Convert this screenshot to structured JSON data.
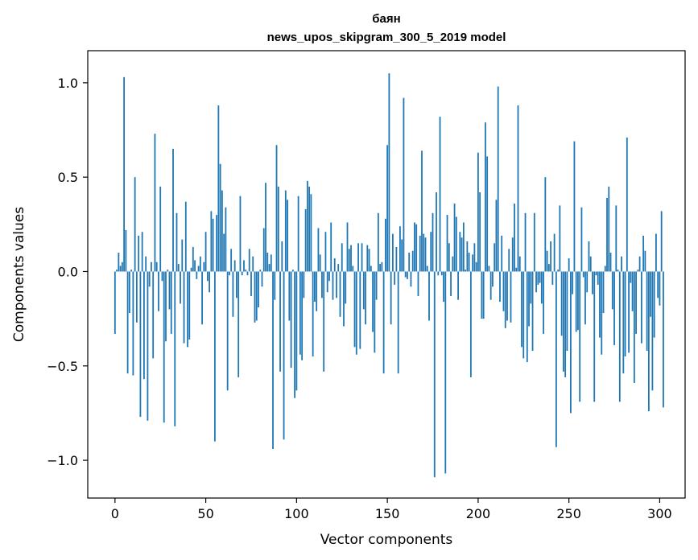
{
  "chart_data": {
    "type": "bar",
    "title_lines": [
      "баян",
      "news_upos_skipgram_300_5_2019 model"
    ],
    "xlabel": "Vector components",
    "ylabel": "Components values",
    "xlim": [
      -15,
      314
    ],
    "ylim": [
      -1.2,
      1.17
    ],
    "xticks": [
      0,
      50,
      100,
      150,
      200,
      250,
      300
    ],
    "yticks": [
      -1.0,
      -0.5,
      0.0,
      0.5,
      1.0
    ],
    "ytick_labels": [
      "−1.0",
      "−0.5",
      "0.0",
      "0.5",
      "1.0"
    ],
    "grid": false,
    "legend": "none",
    "bar_color": "#1f77b4",
    "series": [
      {
        "values": [
          -0.33,
          0.01,
          0.1,
          0.03,
          0.05,
          1.03,
          0.22,
          -0.54,
          -0.22,
          0.01,
          -0.55,
          0.5,
          -0.27,
          0.19,
          -0.77,
          0.21,
          -0.57,
          0.08,
          -0.79,
          -0.08,
          0.05,
          -0.46,
          0.73,
          0.05,
          -0.21,
          0.45,
          -0.05,
          -0.8,
          -0.37,
          0.01,
          -0.2,
          -0.33,
          0.65,
          -0.82,
          0.31,
          0.04,
          -0.17,
          0.17,
          -0.38,
          0.37,
          -0.4,
          -0.36,
          0.02,
          0.13,
          0.06,
          -0.04,
          0.03,
          0.08,
          -0.28,
          0.05,
          0.21,
          -0.05,
          -0.11,
          0.32,
          0.28,
          -0.9,
          0.3,
          0.88,
          0.57,
          0.43,
          0.2,
          0.34,
          -0.63,
          -0.02,
          0.12,
          -0.24,
          0.06,
          -0.14,
          -0.56,
          0.4,
          -0.02,
          0.06,
          0.01,
          -0.02,
          0.12,
          -0.13,
          0.08,
          -0.27,
          -0.26,
          -0.19,
          0.01,
          -0.08,
          0.23,
          0.47,
          0.1,
          0.04,
          0.09,
          -0.94,
          -0.15,
          0.67,
          0.45,
          -0.53,
          0.16,
          -0.89,
          0.43,
          0.38,
          -0.26,
          -0.51,
          0.01,
          -0.67,
          -0.63,
          0.4,
          -0.44,
          -0.47,
          -0.14,
          0.33,
          0.48,
          0.45,
          0.41,
          -0.45,
          -0.16,
          -0.21,
          0.23,
          0.09,
          -0.14,
          -0.53,
          0.21,
          -0.11,
          -0.05,
          0.26,
          -0.15,
          0.07,
          -0.14,
          0.04,
          -0.24,
          0.15,
          -0.29,
          -0.17,
          0.26,
          0.12,
          0.14,
          0.03,
          -0.4,
          -0.44,
          0.15,
          -0.41,
          0.15,
          -0.2,
          -0.28,
          0.14,
          0.12,
          0.03,
          -0.32,
          -0.43,
          -0.15,
          0.31,
          0.04,
          0.05,
          -0.54,
          0.28,
          0.67,
          1.05,
          -0.28,
          0.2,
          -0.07,
          0.13,
          -0.54,
          0.24,
          0.17,
          0.92,
          -0.03,
          -0.04,
          0.1,
          -0.08,
          0.11,
          0.26,
          0.25,
          -0.13,
          0.19,
          0.64,
          0.2,
          0.18,
          0.03,
          -0.26,
          0.21,
          0.31,
          -1.09,
          0.42,
          -0.02,
          0.82,
          -0.02,
          -0.16,
          -1.07,
          0.3,
          0.15,
          -0.13,
          0.08,
          0.36,
          0.29,
          -0.15,
          0.21,
          0.18,
          0.26,
          0.01,
          0.16,
          0.1,
          -0.56,
          0.09,
          0.15,
          0.05,
          0.63,
          0.42,
          -0.25,
          -0.25,
          0.79,
          0.61,
          0.03,
          -0.15,
          -0.08,
          0.15,
          0.38,
          0.98,
          -0.16,
          0.19,
          -0.21,
          -0.3,
          -0.26,
          0.12,
          -0.27,
          0.18,
          0.36,
          0.02,
          0.88,
          0.08,
          -0.4,
          -0.46,
          0.31,
          -0.48,
          -0.29,
          -0.17,
          -0.42,
          0.31,
          -0.11,
          -0.07,
          -0.06,
          -0.17,
          -0.33,
          0.5,
          0.11,
          0.04,
          0.16,
          -0.07,
          0.2,
          -0.93,
          0.01,
          0.35,
          -0.34,
          -0.53,
          -0.56,
          -0.42,
          0.07,
          -0.75,
          -0.12,
          0.69,
          -0.32,
          -0.31,
          -0.69,
          0.34,
          -0.03,
          -0.28,
          -0.11,
          0.16,
          0.08,
          -0.12,
          -0.69,
          -0.02,
          -0.07,
          -0.35,
          -0.44,
          -0.22,
          0.03,
          0.39,
          0.45,
          0.1,
          -0.2,
          -0.39,
          0.35,
          0.01,
          -0.69,
          0.08,
          -0.54,
          -0.45,
          0.71,
          -0.43,
          -0.06,
          -0.21,
          -0.59,
          -0.33,
          0.01,
          0.08,
          -0.38,
          0.19,
          0.11,
          -0.42,
          -0.74,
          -0.24,
          -0.63,
          -0.35,
          0.2,
          -0.14,
          -0.18,
          0.32,
          -0.72
        ]
      }
    ]
  }
}
